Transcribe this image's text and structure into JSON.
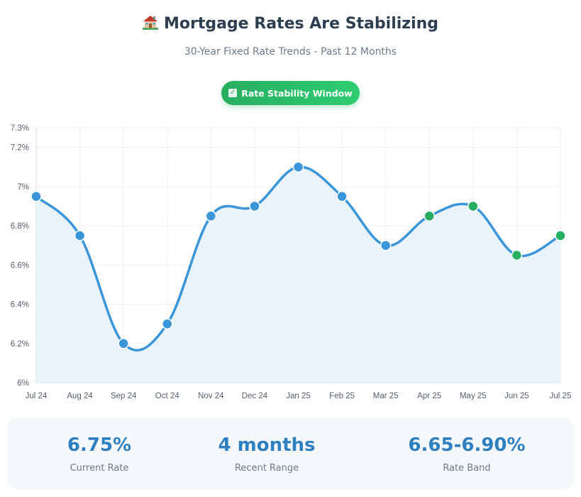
{
  "header": {
    "title": "Mortgage Rates Are Stabilizing",
    "title_icon": "house-icon",
    "subtitle": "30-Year Fixed Rate Trends - Past 12 Months"
  },
  "badge": {
    "label": "Rate Stability Window",
    "icon": "checkbox-icon",
    "color": "#27ae60"
  },
  "chart_data": {
    "type": "area",
    "title": "",
    "xlabel": "",
    "ylabel": "",
    "categories": [
      "Jul 24",
      "Aug 24",
      "Sep 24",
      "Oct 24",
      "Nov 24",
      "Dec 24",
      "Jan 25",
      "Feb 25",
      "Mar 25",
      "Apr 25",
      "May 25",
      "Jun 25",
      "Jul 25"
    ],
    "series": [
      {
        "values": [
          6.95,
          6.75,
          6.2,
          6.3,
          6.85,
          6.9,
          7.1,
          6.95,
          6.7,
          6.85,
          6.9,
          6.65,
          6.75
        ],
        "color": "#3a96d8",
        "fill": "#e8f3fb",
        "highlight_color": "#27ae60",
        "highlight_from_index": 9
      }
    ],
    "ylim": [
      6.0,
      7.3
    ],
    "yticks": [
      6.0,
      6.2,
      6.4,
      6.6,
      6.8,
      7.0,
      7.2,
      7.3
    ],
    "ytick_labels": [
      "6%",
      "6.2%",
      "6.4%",
      "6.6%",
      "6.8%",
      "7%",
      "7.2%",
      "7.3%"
    ],
    "grid": true,
    "smooth": true
  },
  "stats": [
    {
      "value": "6.75%",
      "label": "Current Rate"
    },
    {
      "value": "4 months",
      "label": "Recent Range"
    },
    {
      "value": "6.65-6.90%",
      "label": "Rate Band"
    }
  ]
}
